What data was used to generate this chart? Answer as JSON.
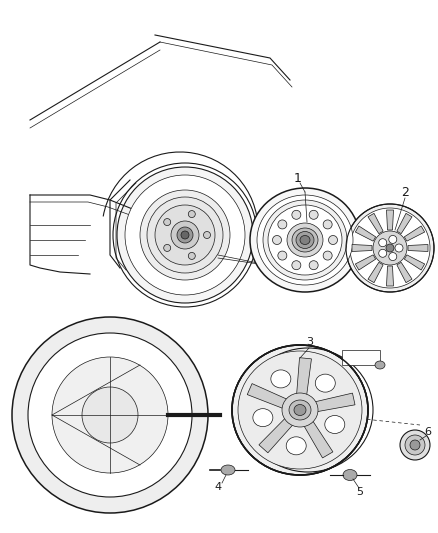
{
  "bg_color": "#ffffff",
  "line_color": "#1a1a1a",
  "label_color": "#1a1a1a",
  "figsize": [
    4.38,
    5.33
  ],
  "dpi": 100,
  "lw_thin": 0.5,
  "lw_med": 0.8,
  "lw_thick": 1.1
}
